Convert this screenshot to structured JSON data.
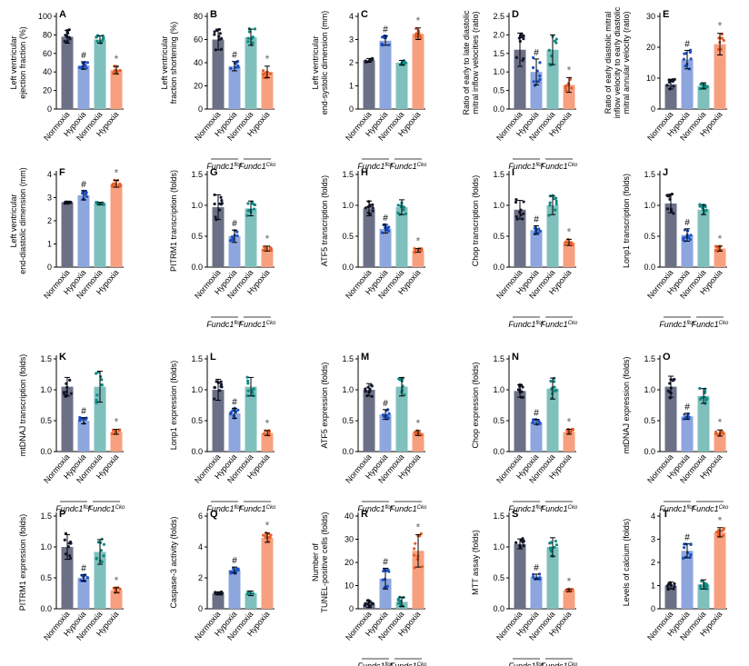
{
  "colors": {
    "c1": "#6c7087",
    "c2": "#8ea6de",
    "c3": "#7fc0bd",
    "c4": "#f7a07f",
    "d1": "#15192f",
    "d2": "#1d52c4",
    "d3": "#0f8a83",
    "d4": "#e55e2a"
  },
  "groups": [
    "Normoxia",
    "Hypoxia",
    "Normoxia",
    "Hypoxia"
  ],
  "genotypes": {
    "flox": {
      "base": "Fundc1",
      "sup": "flox"
    },
    "cko": {
      "base": "Fundc1",
      "sup": "Cko"
    }
  },
  "chart_data": [
    {
      "letter": "A",
      "type": "bar",
      "ylabel": [
        "Left ventricular",
        "ejection fraction (%)"
      ],
      "ylim": [
        0,
        100
      ],
      "ticks": [
        0,
        20,
        40,
        60,
        80,
        100
      ],
      "values": [
        78,
        47,
        75,
        42
      ],
      "sd": [
        7,
        4,
        4,
        4
      ],
      "marks": [
        "",
        "#",
        "",
        "*"
      ],
      "geno": false
    },
    {
      "letter": "B",
      "type": "bar",
      "ylabel": [
        "Left ventricular",
        "fraction shortening (%)"
      ],
      "ylim": [
        0,
        80
      ],
      "ticks": [
        0,
        20,
        40,
        60,
        80
      ],
      "values": [
        60,
        37,
        62,
        32
      ],
      "sd": [
        9,
        4,
        7,
        5
      ],
      "marks": [
        "",
        "#",
        "",
        "*"
      ],
      "geno": true
    },
    {
      "letter": "C",
      "type": "bar",
      "ylabel": [
        "Left ventricular",
        "end-systolic dimension (mm)"
      ],
      "ylim": [
        0,
        4
      ],
      "ticks": [
        0,
        1,
        2,
        3,
        4
      ],
      "values": [
        2.1,
        2.95,
        2.0,
        3.25
      ],
      "sd": [
        0.08,
        0.2,
        0.1,
        0.25
      ],
      "marks": [
        "",
        "#",
        "",
        "*"
      ],
      "geno": true
    },
    {
      "letter": "D",
      "type": "bar",
      "ylabel": [
        "Ratio of early to late diastolic",
        "mitral inflow velocities (ratio)"
      ],
      "ylim": [
        0,
        2.5
      ],
      "ticks": [
        0,
        0.5,
        1.0,
        1.5,
        2.0,
        2.5
      ],
      "values": [
        1.6,
        1.0,
        1.6,
        0.65
      ],
      "sd": [
        0.45,
        0.35,
        0.4,
        0.2
      ],
      "marks": [
        "",
        "#",
        "",
        "*"
      ],
      "geno": true
    },
    {
      "letter": "E",
      "type": "bar",
      "ylabel": [
        "Ratio of early diastolic mitral",
        "inflow velocity to early diastolic",
        "mitral annular velocity (ratio)"
      ],
      "ylim": [
        0,
        30
      ],
      "ticks": [
        0,
        10,
        20,
        30
      ],
      "values": [
        8,
        16,
        7.5,
        21
      ],
      "sd": [
        1.5,
        3,
        1,
        3.5
      ],
      "marks": [
        "",
        "#",
        "",
        "*"
      ],
      "geno": false
    },
    {
      "letter": "F",
      "type": "bar",
      "ylabel": [
        "Left ventricular",
        "end-diastolic dimension (mm)"
      ],
      "ylim": [
        0,
        4
      ],
      "ticks": [
        0,
        1,
        2,
        3,
        4
      ],
      "values": [
        2.8,
        3.1,
        2.75,
        3.6
      ],
      "sd": [
        0.05,
        0.2,
        0.05,
        0.15
      ],
      "marks": [
        "",
        "#",
        "",
        "*"
      ],
      "geno": false
    },
    {
      "letter": "G",
      "type": "bar",
      "ylabel": [
        "PITRM1 transcription (folds)"
      ],
      "ylim": [
        0,
        1.5
      ],
      "ticks": [
        0,
        0.5,
        1.0,
        1.5
      ],
      "values": [
        0.97,
        0.5,
        0.95,
        0.3
      ],
      "sd": [
        0.2,
        0.1,
        0.12,
        0.04
      ],
      "marks": [
        "",
        "#",
        "",
        "*"
      ],
      "geno": true
    },
    {
      "letter": "H",
      "type": "bar",
      "ylabel": [
        "ATF5 transcription (folds)"
      ],
      "ylim": [
        0,
        1.5
      ],
      "ticks": [
        0,
        0.5,
        1.0,
        1.5
      ],
      "values": [
        0.95,
        0.62,
        0.97,
        0.27
      ],
      "sd": [
        0.12,
        0.07,
        0.12,
        0.03
      ],
      "marks": [
        "",
        "#",
        "",
        "*"
      ],
      "geno": false
    },
    {
      "letter": "I",
      "type": "bar",
      "ylabel": [
        "Chop transcription (folds)"
      ],
      "ylim": [
        0,
        1.5
      ],
      "ticks": [
        0,
        0.5,
        1.0,
        1.5
      ],
      "values": [
        0.93,
        0.6,
        1.0,
        0.4
      ],
      "sd": [
        0.15,
        0.07,
        0.15,
        0.05
      ],
      "marks": [
        "",
        "#",
        "",
        "*"
      ],
      "geno": true
    },
    {
      "letter": "J",
      "type": "bar",
      "ylabel": [
        "Lonp1 transcription (folds)"
      ],
      "ylim": [
        0,
        1.5
      ],
      "ticks": [
        0,
        0.5,
        1.0,
        1.5
      ],
      "values": [
        1.03,
        0.52,
        0.93,
        0.3
      ],
      "sd": [
        0.15,
        0.1,
        0.08,
        0.04
      ],
      "marks": [
        "",
        "#",
        "",
        "*"
      ],
      "geno": true
    },
    {
      "letter": "K",
      "type": "bar",
      "ylabel": [
        "mtDNAJ transcription (folds)"
      ],
      "ylim": [
        0,
        1.5
      ],
      "ticks": [
        0,
        0.5,
        1.0,
        1.5
      ],
      "values": [
        1.05,
        0.5,
        1.05,
        0.32
      ],
      "sd": [
        0.15,
        0.05,
        0.25,
        0.04
      ],
      "marks": [
        "",
        "#",
        "",
        "*"
      ],
      "geno": true
    },
    {
      "letter": "L",
      "type": "bar",
      "ylabel": [
        "Lonp1 expression (folds)"
      ],
      "ylim": [
        0,
        1.5
      ],
      "ticks": [
        0,
        0.5,
        1.0,
        1.5
      ],
      "values": [
        1.0,
        0.62,
        1.05,
        0.3
      ],
      "sd": [
        0.17,
        0.08,
        0.15,
        0.04
      ],
      "marks": [
        "",
        "#",
        "",
        "*"
      ],
      "geno": true
    },
    {
      "letter": "M",
      "type": "bar",
      "ylabel": [
        "ATF5 expression (folds)"
      ],
      "ylim": [
        0,
        1.5
      ],
      "ticks": [
        0,
        0.5,
        1.0,
        1.5
      ],
      "values": [
        1.0,
        0.6,
        1.05,
        0.3
      ],
      "sd": [
        0.1,
        0.08,
        0.15,
        0.04
      ],
      "marks": [
        "",
        "#",
        "",
        "*"
      ],
      "geno": true
    },
    {
      "letter": "N",
      "type": "bar",
      "ylabel": [
        "Chop expression (folds)"
      ],
      "ylim": [
        0,
        1.5
      ],
      "ticks": [
        0,
        0.5,
        1.0,
        1.5
      ],
      "values": [
        0.98,
        0.48,
        1.02,
        0.32
      ],
      "sd": [
        0.1,
        0.04,
        0.17,
        0.04
      ],
      "marks": [
        "",
        "#",
        "",
        "*"
      ],
      "geno": true
    },
    {
      "letter": "O",
      "type": "bar",
      "ylabel": [
        "mtDNAJ expression (folds)"
      ],
      "ylim": [
        0,
        1.5
      ],
      "ticks": [
        0,
        0.5,
        1.0,
        1.5
      ],
      "values": [
        1.05,
        0.57,
        0.9,
        0.3
      ],
      "sd": [
        0.17,
        0.05,
        0.12,
        0.05
      ],
      "marks": [
        "",
        "#",
        "",
        "*"
      ],
      "geno": true
    },
    {
      "letter": "P",
      "type": "bar",
      "ylabel": [
        "PITRM1 expression (folds)"
      ],
      "ylim": [
        0,
        1.5
      ],
      "ticks": [
        0,
        0.5,
        1.0,
        1.5
      ],
      "values": [
        1.0,
        0.5,
        0.92,
        0.3
      ],
      "sd": [
        0.2,
        0.05,
        0.2,
        0.04
      ],
      "marks": [
        "",
        "#",
        "",
        "*"
      ],
      "geno": false
    },
    {
      "letter": "Q",
      "type": "bar",
      "ylabel": [
        "Caspase-3 activity (folds)"
      ],
      "ylim": [
        0,
        6
      ],
      "ticks": [
        0,
        2,
        4,
        6
      ],
      "values": [
        1.0,
        2.5,
        1.0,
        4.6
      ],
      "sd": [
        0.1,
        0.2,
        0.15,
        0.3
      ],
      "marks": [
        "",
        "#",
        "",
        "*"
      ],
      "geno": false
    },
    {
      "letter": "R",
      "type": "bar",
      "ylabel": [
        "Number of",
        "TUNEL-positive cells (folds)"
      ],
      "ylim": [
        0,
        40
      ],
      "ticks": [
        0,
        10,
        20,
        30,
        40
      ],
      "values": [
        2,
        13,
        3,
        25
      ],
      "sd": [
        1.5,
        4.5,
        2,
        7
      ],
      "marks": [
        "",
        "#",
        "",
        "*"
      ],
      "geno": true
    },
    {
      "letter": "S",
      "type": "bar",
      "ylabel": [
        "MTT assay (folds)"
      ],
      "ylim": [
        0,
        1.5
      ],
      "ticks": [
        0,
        0.5,
        1.0,
        1.5
      ],
      "values": [
        1.05,
        0.52,
        1.0,
        0.3
      ],
      "sd": [
        0.08,
        0.04,
        0.15,
        0.02
      ],
      "marks": [
        "",
        "#",
        "",
        "*"
      ],
      "geno": true
    },
    {
      "letter": "T",
      "type": "bar",
      "ylabel": [
        "Levels of calcium (folds)"
      ],
      "ylim": [
        0,
        4
      ],
      "ticks": [
        0,
        1,
        2,
        3,
        4
      ],
      "values": [
        1.0,
        2.5,
        1.05,
        3.3
      ],
      "sd": [
        0.15,
        0.3,
        0.2,
        0.2
      ],
      "marks": [
        "",
        "#",
        "",
        "*"
      ],
      "geno": false
    }
  ]
}
